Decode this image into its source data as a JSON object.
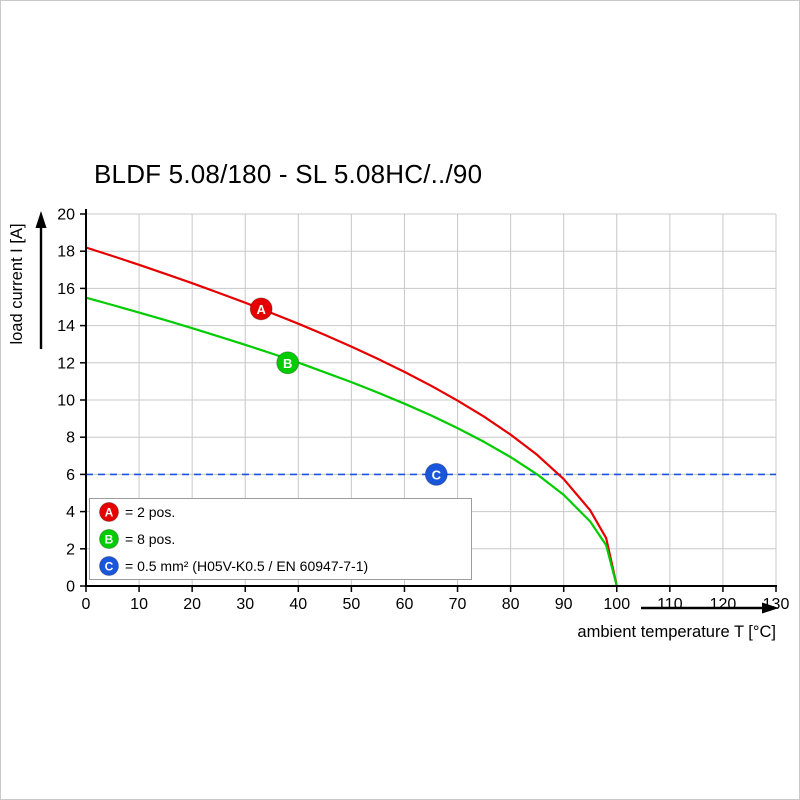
{
  "chart_data": {
    "type": "line",
    "title": "BLDF 5.08/180 - SL 5.08HC/../90",
    "xlabel": "ambient temperature T [°C]",
    "ylabel": "load current I [A]",
    "xlim": [
      0,
      130
    ],
    "ylim": [
      0,
      20
    ],
    "x_ticks": [
      0,
      10,
      20,
      30,
      40,
      50,
      60,
      70,
      80,
      90,
      100,
      110,
      120,
      130
    ],
    "y_ticks": [
      0,
      2,
      4,
      6,
      8,
      10,
      12,
      14,
      16,
      18,
      20
    ],
    "grid": true,
    "grid_color": "#c8c8c8",
    "series": [
      {
        "name": "A",
        "legend": "= 2 pos.",
        "color": "#e60000",
        "marker": {
          "x": 33,
          "y": 14.9
        },
        "x": [
          0,
          5,
          10,
          15,
          20,
          25,
          30,
          35,
          40,
          45,
          50,
          55,
          60,
          65,
          70,
          75,
          80,
          85,
          90,
          95,
          98,
          100
        ],
        "values": [
          18.2,
          17.74,
          17.27,
          16.78,
          16.28,
          15.76,
          15.23,
          14.67,
          14.1,
          13.5,
          12.87,
          12.21,
          11.51,
          10.77,
          9.97,
          9.1,
          8.14,
          7.05,
          5.75,
          4.07,
          2.57,
          0
        ]
      },
      {
        "name": "B",
        "legend": "= 8 pos.",
        "color": "#00cc00",
        "marker": {
          "x": 38,
          "y": 12
        },
        "x": [
          0,
          5,
          10,
          15,
          20,
          25,
          30,
          35,
          40,
          45,
          50,
          55,
          60,
          65,
          70,
          75,
          80,
          85,
          90,
          95,
          98,
          100
        ],
        "values": [
          15.5,
          15.11,
          14.7,
          14.29,
          13.86,
          13.42,
          12.97,
          12.5,
          12.01,
          11.49,
          10.96,
          10.4,
          9.8,
          9.17,
          8.49,
          7.75,
          6.93,
          6.0,
          4.9,
          3.47,
          2.19,
          0
        ]
      }
    ],
    "reference_line": {
      "name": "C",
      "legend": "= 0.5 mm² (H05V-K0.5 / EN 60947-7-1)",
      "color": "#1a56db",
      "y": 6,
      "style": "dashed",
      "marker": {
        "x": 66,
        "y": 6
      }
    }
  },
  "legend": {
    "items": [
      {
        "key": "A",
        "color": "#e60000",
        "text": "= 2 pos."
      },
      {
        "key": "B",
        "color": "#00cc00",
        "text": "= 8 pos."
      },
      {
        "key": "C",
        "color": "#1a56db",
        "text": "= 0.5 mm² (H05V-K0.5 / EN 60947-7-1)"
      }
    ]
  }
}
